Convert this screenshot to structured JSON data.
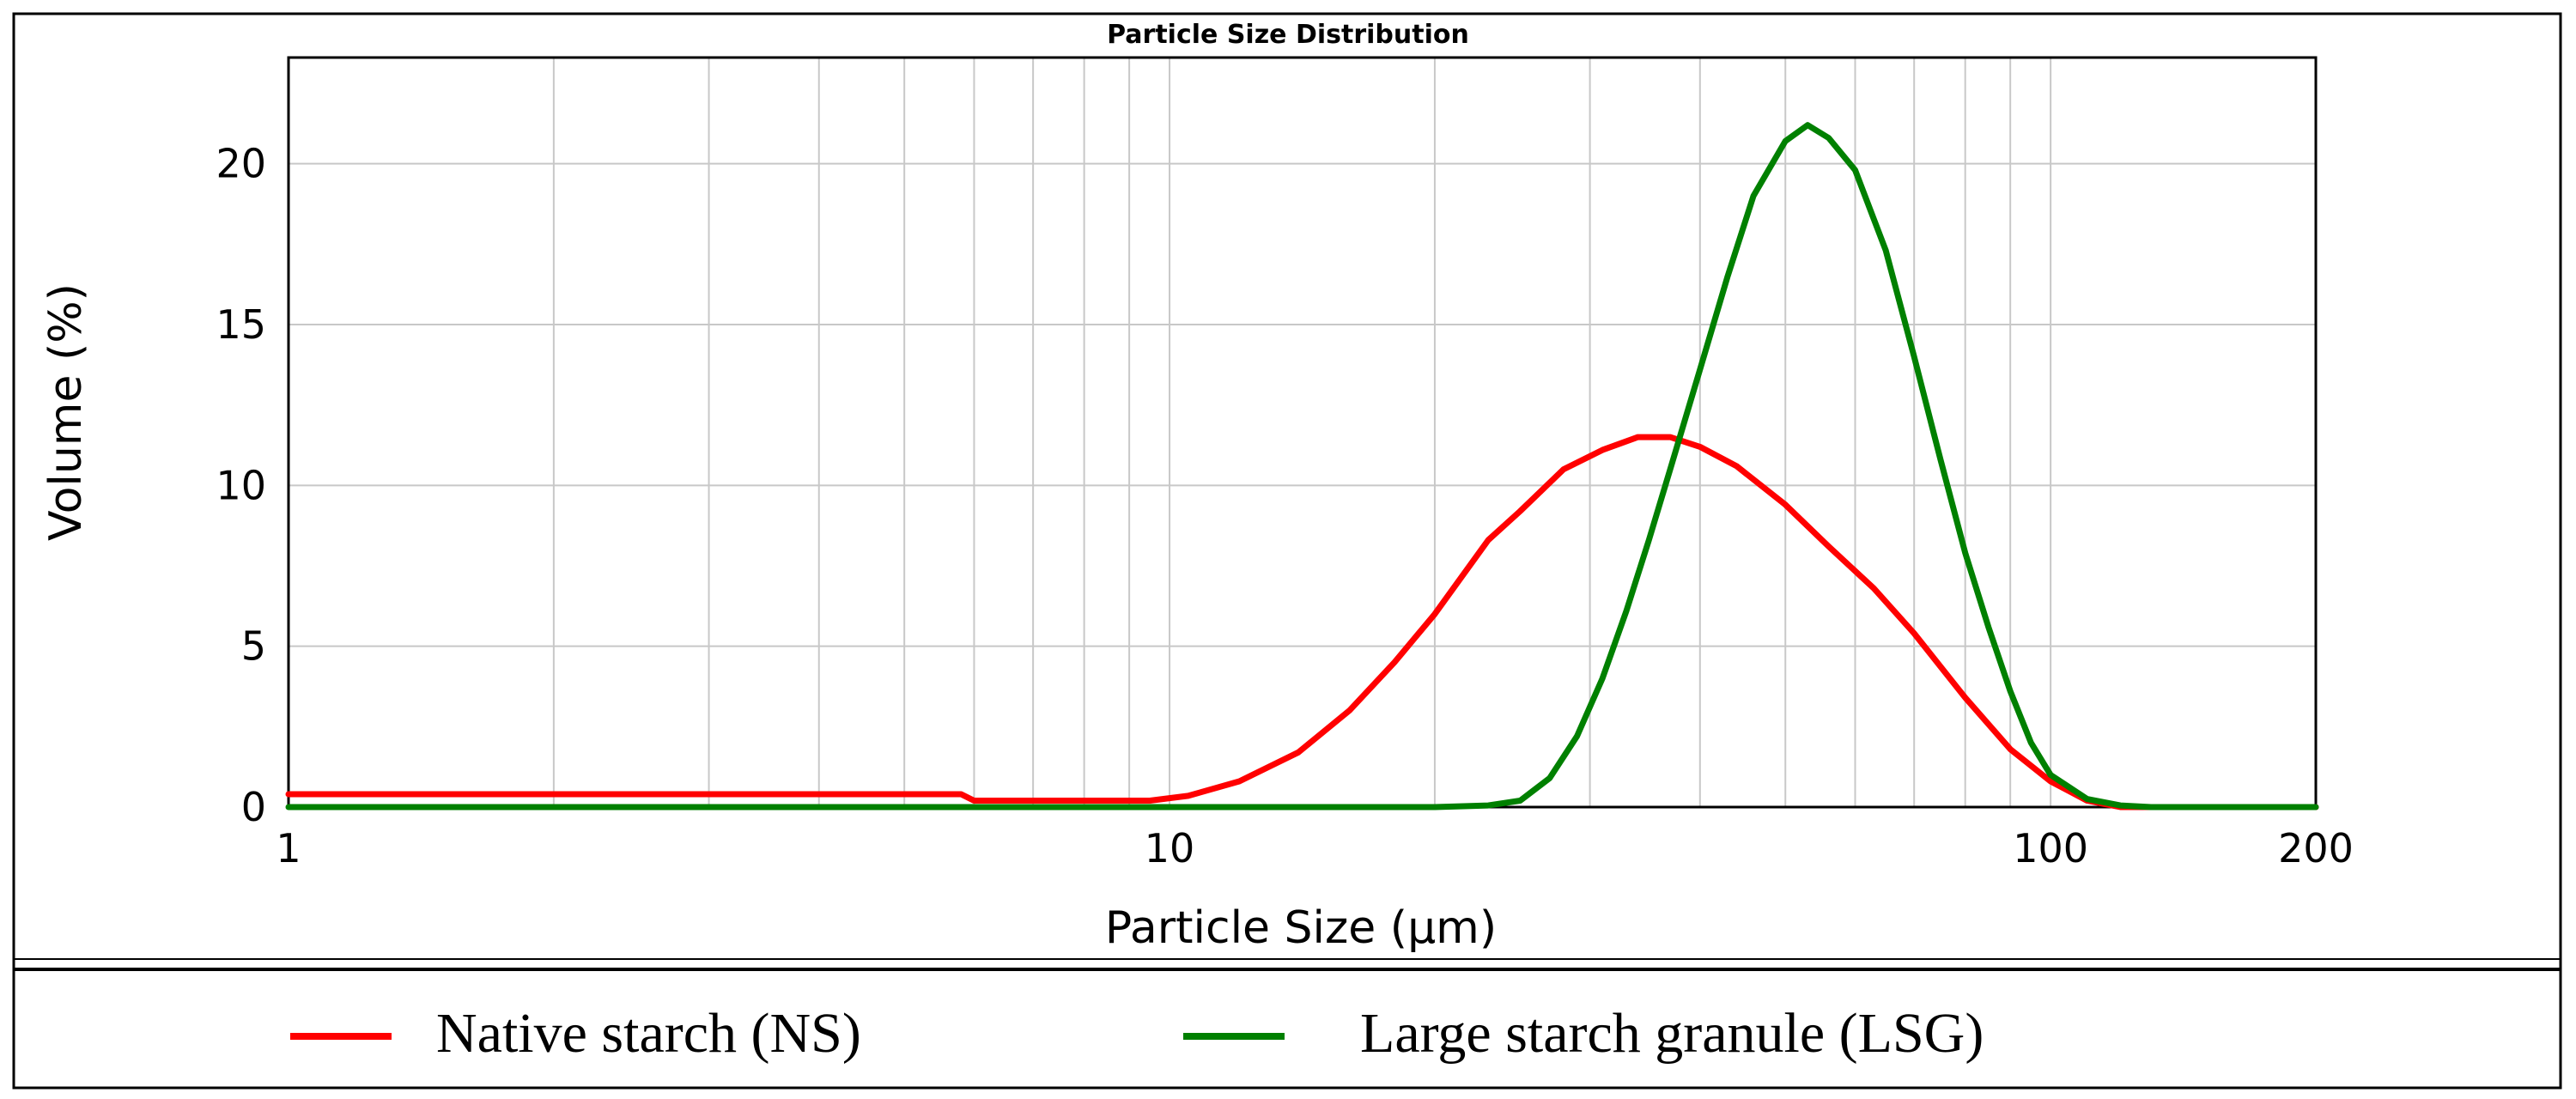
{
  "chart_data": {
    "type": "line",
    "title": "Particle Size Distribution",
    "xlabel": "Particle Size (µm)",
    "ylabel": "Volume (%)",
    "xscale": "log",
    "xlim": [
      1,
      200
    ],
    "ylim": [
      0,
      23.3
    ],
    "xticks": [
      {
        "value": 1,
        "label": "1"
      },
      {
        "value": 10,
        "label": "10"
      },
      {
        "value": 100,
        "label": "100"
      },
      {
        "value": 200,
        "label": "200"
      }
    ],
    "yticks": [
      {
        "value": 0,
        "label": "0"
      },
      {
        "value": 5,
        "label": "5"
      },
      {
        "value": 10,
        "label": "10"
      },
      {
        "value": 15,
        "label": "15"
      },
      {
        "value": 20,
        "label": "20"
      }
    ],
    "grid": true,
    "legend_position": "bottom",
    "series": [
      {
        "name": "Native starch (NS)",
        "color": "#ff0000",
        "x": [
          1,
          2,
          4,
          5.8,
          6,
          8,
          9.5,
          10.5,
          12,
          14,
          16,
          18,
          20,
          23,
          25,
          28,
          31,
          34,
          37,
          40,
          44,
          50,
          56,
          63,
          70,
          80,
          90,
          100,
          110,
          120,
          140,
          200
        ],
        "y": [
          0.4,
          0.4,
          0.4,
          0.4,
          0.2,
          0.2,
          0.2,
          0.35,
          0.8,
          1.7,
          3.0,
          4.5,
          6.0,
          8.3,
          9.2,
          10.5,
          11.1,
          11.5,
          11.5,
          11.2,
          10.6,
          9.4,
          8.1,
          6.8,
          5.4,
          3.4,
          1.8,
          0.8,
          0.2,
          0.0,
          0.0,
          0.0
        ]
      },
      {
        "name": "Large starch granule (LSG)",
        "color": "#008000",
        "x": [
          1,
          10,
          20,
          23,
          25,
          27,
          29,
          31,
          33,
          35,
          37,
          40,
          43,
          46,
          50,
          53,
          56,
          60,
          65,
          70,
          75,
          80,
          85,
          90,
          95,
          100,
          110,
          120,
          130,
          200
        ],
        "y": [
          0,
          0,
          0,
          0.05,
          0.2,
          0.9,
          2.2,
          4.0,
          6.1,
          8.3,
          10.5,
          13.6,
          16.5,
          19.0,
          20.7,
          21.2,
          20.8,
          19.8,
          17.3,
          14.0,
          10.8,
          7.9,
          5.6,
          3.6,
          2.0,
          1.0,
          0.25,
          0.05,
          0.0,
          0.0
        ]
      }
    ]
  }
}
